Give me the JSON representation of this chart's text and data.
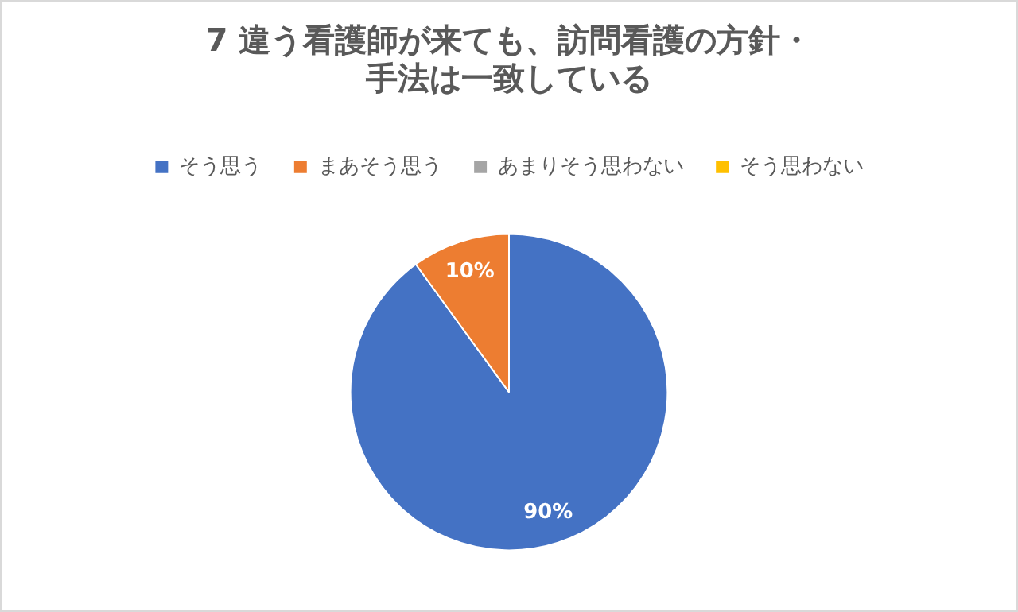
{
  "chart_data": {
    "type": "pie",
    "title": "7 違う看護師が来ても、訪問看護の方針・手法は一致している",
    "categories": [
      "そう思う",
      "まあそう思う",
      "あまりそう思わない",
      "そう思わない"
    ],
    "values": [
      90,
      10,
      0,
      0
    ],
    "colors": [
      "#4472c4",
      "#ed7d31",
      "#a5a5a5",
      "#ffc000"
    ],
    "value_labels": [
      "90%",
      "10%",
      null,
      null
    ],
    "legend": "top"
  }
}
